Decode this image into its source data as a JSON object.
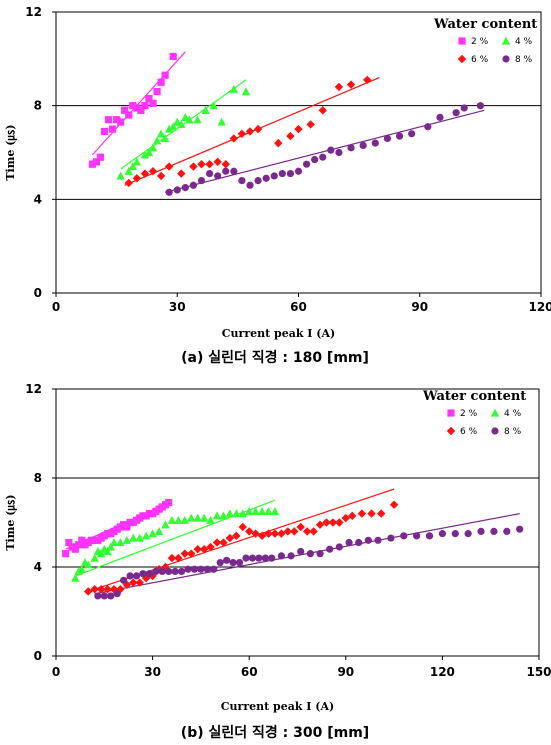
{
  "chart_data": [
    {
      "type": "scatter",
      "caption": "(a) 실린더 직경 : 180 [mm]",
      "xlabel": "Current peak I (A)",
      "ylabel": "Time (㎲)",
      "xlim": [
        0,
        120
      ],
      "ylim": [
        0,
        12
      ],
      "xticks": [
        0,
        30,
        60,
        90,
        120
      ],
      "yticks": [
        0,
        4,
        8,
        12
      ],
      "grid": "horizontal at 4 and 8",
      "legend": {
        "title": "Water content",
        "placement": "top-right",
        "entries": [
          "2 %",
          "4 %",
          "6 %",
          "8 %"
        ]
      },
      "series": [
        {
          "name": "2 %",
          "marker": "square",
          "color": "#FF33FF",
          "x": [
            9,
            10,
            11,
            12,
            13,
            14,
            15,
            16,
            17,
            18,
            19,
            20,
            21,
            22,
            23,
            24,
            25,
            26,
            27,
            29
          ],
          "y": [
            5.5,
            5.6,
            5.8,
            6.9,
            7.4,
            7.0,
            7.4,
            7.3,
            7.8,
            7.6,
            8.0,
            7.9,
            7.8,
            8.0,
            8.3,
            8.1,
            8.6,
            9.0,
            9.3,
            10.1
          ],
          "trend": [
            [
              9,
              5.9
            ],
            [
              32,
              10.3
            ]
          ]
        },
        {
          "name": "4 %",
          "marker": "triangle",
          "color": "#33FF33",
          "x": [
            16,
            18,
            19,
            20,
            22,
            23,
            24,
            25,
            26,
            27,
            28,
            29,
            30,
            31,
            32,
            33,
            35,
            37,
            39,
            41,
            44,
            47
          ],
          "y": [
            5.0,
            5.2,
            5.4,
            5.6,
            5.9,
            6.0,
            6.2,
            6.5,
            6.8,
            6.6,
            7.0,
            7.1,
            7.3,
            7.2,
            7.5,
            7.4,
            7.4,
            7.8,
            8.0,
            7.3,
            8.7,
            8.6
          ],
          "trend": [
            [
              16,
              5.3
            ],
            [
              47,
              9.1
            ]
          ]
        },
        {
          "name": "6 %",
          "marker": "diamond",
          "color": "#FF1111",
          "x": [
            18,
            20,
            22,
            24,
            26,
            28,
            31,
            34,
            36,
            38,
            40,
            42,
            44,
            46,
            48,
            50,
            55,
            58,
            60,
            63,
            66,
            70,
            73,
            77
          ],
          "y": [
            4.7,
            4.9,
            5.1,
            5.2,
            5.0,
            5.4,
            5.1,
            5.4,
            5.5,
            5.5,
            5.6,
            5.5,
            6.6,
            6.8,
            6.9,
            7.0,
            6.4,
            6.7,
            7.0,
            7.2,
            7.8,
            8.8,
            8.9,
            9.1
          ],
          "trend": [
            [
              17,
              4.6
            ],
            [
              80,
              9.2
            ]
          ]
        },
        {
          "name": "8 %",
          "marker": "circle",
          "color": "#7A2A8E",
          "x": [
            28,
            30,
            32,
            34,
            36,
            38,
            40,
            42,
            44,
            46,
            48,
            50,
            52,
            54,
            56,
            58,
            60,
            62,
            64,
            66,
            68,
            70,
            73,
            76,
            79,
            82,
            85,
            88,
            92,
            95,
            99,
            101,
            105
          ],
          "y": [
            4.3,
            4.4,
            4.5,
            4.6,
            4.8,
            5.1,
            5.0,
            5.2,
            5.2,
            4.8,
            4.6,
            4.8,
            4.9,
            5.0,
            5.1,
            5.1,
            5.2,
            5.5,
            5.7,
            5.8,
            6.1,
            6.0,
            6.2,
            6.3,
            6.4,
            6.6,
            6.7,
            6.8,
            7.1,
            7.5,
            7.7,
            7.9,
            8.0
          ],
          "trend": [
            [
              27,
              4.3
            ],
            [
              106,
              7.8
            ]
          ]
        }
      ]
    },
    {
      "type": "scatter",
      "caption": "(b) 실린더 직경 : 300 [mm]",
      "xlabel": "Current peak I (A)",
      "ylabel": "Time (㎲)",
      "xlim": [
        0,
        150
      ],
      "ylim": [
        0,
        12
      ],
      "xticks": [
        0,
        30,
        60,
        90,
        120,
        150
      ],
      "yticks": [
        0,
        4,
        8,
        12
      ],
      "grid": "horizontal at 4 and 8",
      "legend": {
        "title": "Water content",
        "placement": "top-right",
        "entries": [
          "2 %",
          "4 %",
          "6 %",
          "8 %"
        ]
      },
      "series": [
        {
          "name": "2 %",
          "marker": "square",
          "color": "#FF33FF",
          "x": [
            3,
            4,
            5,
            6,
            7,
            8,
            9,
            10,
            11,
            12,
            13,
            14,
            15,
            16,
            17,
            18,
            19,
            20,
            21,
            22,
            23,
            24,
            25,
            26,
            27,
            28,
            29,
            30,
            31,
            32,
            33,
            34,
            35
          ],
          "y": [
            4.6,
            5.1,
            4.9,
            4.8,
            5.0,
            5.2,
            5.0,
            5.1,
            5.2,
            5.2,
            5.2,
            5.3,
            5.4,
            5.5,
            5.5,
            5.6,
            5.7,
            5.8,
            5.9,
            5.8,
            6.0,
            6.0,
            6.1,
            6.2,
            6.3,
            6.3,
            6.4,
            6.4,
            6.5,
            6.6,
            6.7,
            6.8,
            6.9
          ],
          "trend": [
            [
              3,
              4.8
            ],
            [
              34,
              6.8
            ]
          ]
        },
        {
          "name": "4 %",
          "marker": "triangle",
          "color": "#33FF33",
          "x": [
            6,
            7,
            8,
            9,
            10,
            12,
            13,
            14,
            15,
            16,
            17,
            18,
            20,
            22,
            24,
            26,
            28,
            30,
            32,
            34,
            36,
            38,
            40,
            42,
            44,
            46,
            48,
            50,
            52,
            54,
            56,
            58,
            60,
            62,
            64,
            66,
            68
          ],
          "y": [
            3.5,
            3.8,
            3.9,
            4.2,
            4.1,
            4.4,
            4.7,
            4.6,
            4.8,
            4.7,
            4.9,
            5.1,
            5.1,
            5.2,
            5.3,
            5.3,
            5.4,
            5.5,
            5.6,
            5.9,
            6.1,
            6.1,
            6.1,
            6.2,
            6.2,
            6.2,
            6.1,
            6.3,
            6.3,
            6.4,
            6.4,
            6.4,
            6.5,
            6.5,
            6.5,
            6.5,
            6.5
          ],
          "trend": [
            [
              6,
              3.6
            ],
            [
              68,
              7.0
            ]
          ]
        },
        {
          "name": "6 %",
          "marker": "diamond",
          "color": "#FF1111",
          "x": [
            10,
            12,
            14,
            16,
            18,
            20,
            22,
            24,
            26,
            28,
            30,
            32,
            34,
            36,
            38,
            40,
            42,
            44,
            46,
            48,
            50,
            52,
            54,
            56,
            58,
            60,
            62,
            64,
            66,
            68,
            70,
            72,
            74,
            76,
            78,
            80,
            82,
            84,
            86,
            88,
            90,
            92,
            95,
            98,
            101,
            105
          ],
          "y": [
            2.9,
            3.0,
            3.0,
            3.0,
            3.0,
            3.0,
            3.2,
            3.3,
            3.3,
            3.5,
            3.6,
            3.9,
            4.0,
            4.4,
            4.4,
            4.6,
            4.6,
            4.8,
            4.8,
            4.9,
            5.1,
            5.1,
            5.3,
            5.4,
            5.8,
            5.6,
            5.5,
            5.4,
            5.5,
            5.5,
            5.5,
            5.6,
            5.6,
            5.8,
            5.6,
            5.6,
            5.9,
            6.0,
            6.0,
            6.0,
            6.2,
            6.3,
            6.4,
            6.4,
            6.4,
            6.8
          ],
          "trend": [
            [
              10,
              2.9
            ],
            [
              105,
              7.5
            ]
          ]
        },
        {
          "name": "8 %",
          "marker": "circle",
          "color": "#7A2A8E",
          "x": [
            13,
            15,
            17,
            19,
            21,
            23,
            25,
            27,
            29,
            31,
            33,
            35,
            37,
            39,
            41,
            43,
            45,
            47,
            49,
            51,
            53,
            55,
            57,
            59,
            61,
            63,
            65,
            67,
            70,
            73,
            76,
            79,
            82,
            85,
            88,
            91,
            94,
            97,
            100,
            104,
            108,
            112,
            116,
            120,
            124,
            128,
            132,
            136,
            140,
            144
          ],
          "y": [
            2.7,
            2.7,
            2.7,
            2.8,
            3.4,
            3.6,
            3.6,
            3.7,
            3.7,
            3.8,
            3.8,
            3.8,
            3.8,
            3.8,
            3.9,
            3.9,
            3.9,
            3.9,
            3.9,
            4.2,
            4.3,
            4.2,
            4.2,
            4.4,
            4.4,
            4.4,
            4.4,
            4.4,
            4.5,
            4.5,
            4.7,
            4.6,
            4.6,
            4.8,
            4.9,
            5.1,
            5.1,
            5.2,
            5.2,
            5.3,
            5.4,
            5.4,
            5.4,
            5.5,
            5.5,
            5.5,
            5.6,
            5.6,
            5.6,
            5.7
          ],
          "trend": [
            [
              12,
              2.8
            ],
            [
              144,
              6.4
            ]
          ]
        }
      ]
    }
  ]
}
